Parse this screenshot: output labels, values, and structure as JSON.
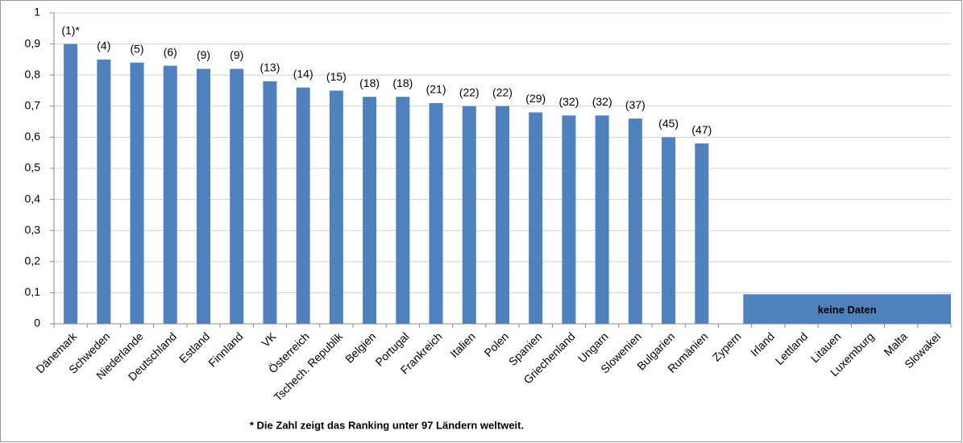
{
  "chart_data": {
    "type": "bar",
    "categories": [
      "Dänemark",
      "Schweden",
      "Niederlande",
      "Deutschland",
      "Estland",
      "Finnland",
      "VK",
      "Österreich",
      "Tschech. Republik",
      "Belgien",
      "Portugal",
      "Frankreich",
      "Italien",
      "Polen",
      "Spanien",
      "Griechenland",
      "Ungarn",
      "Slowenien",
      "Bulgarien",
      "Rumänien",
      "Zypern",
      "Irland",
      "Lettland",
      "Litauen",
      "Luxemburg",
      "Malta",
      "Slowakei"
    ],
    "values": [
      0.9,
      0.85,
      0.84,
      0.83,
      0.82,
      0.82,
      0.78,
      0.76,
      0.75,
      0.73,
      0.73,
      0.71,
      0.7,
      0.7,
      0.68,
      0.67,
      0.67,
      0.66,
      0.6,
      0.58,
      null,
      null,
      null,
      null,
      null,
      null,
      null
    ],
    "rank_labels": [
      "(1)*",
      "(4)",
      "(5)",
      "(6)",
      "(9)",
      "(9)",
      "(13)",
      "(14)",
      "(15)",
      "(18)",
      "(18)",
      "(21)",
      "(22)",
      "(22)",
      "(29)",
      "(32)",
      "(32)",
      "(37)",
      "(45)",
      "(47)",
      null,
      null,
      null,
      null,
      null,
      null,
      null
    ],
    "color": "#4f81bd",
    "ylim": [
      0,
      1
    ],
    "yticks": [
      0,
      {
        "value": 0.1,
        "label": "0,1"
      },
      {
        "value": 0.2,
        "label": "0,2"
      },
      {
        "value": 0.3,
        "label": "0,3"
      },
      {
        "value": 0.4,
        "label": "0,4"
      },
      {
        "value": 0.5,
        "label": "0,5"
      },
      {
        "value": 0.6,
        "label": "0,6"
      },
      {
        "value": 0.7,
        "label": "0,7"
      },
      {
        "value": 0.8,
        "label": "0,8"
      },
      {
        "value": 0.9,
        "label": "0,9"
      },
      1
    ],
    "grid": true,
    "annotation": "keine Daten",
    "footnote": "* Die Zahl zeigt das Ranking unter 97 Ländern weltweit."
  }
}
